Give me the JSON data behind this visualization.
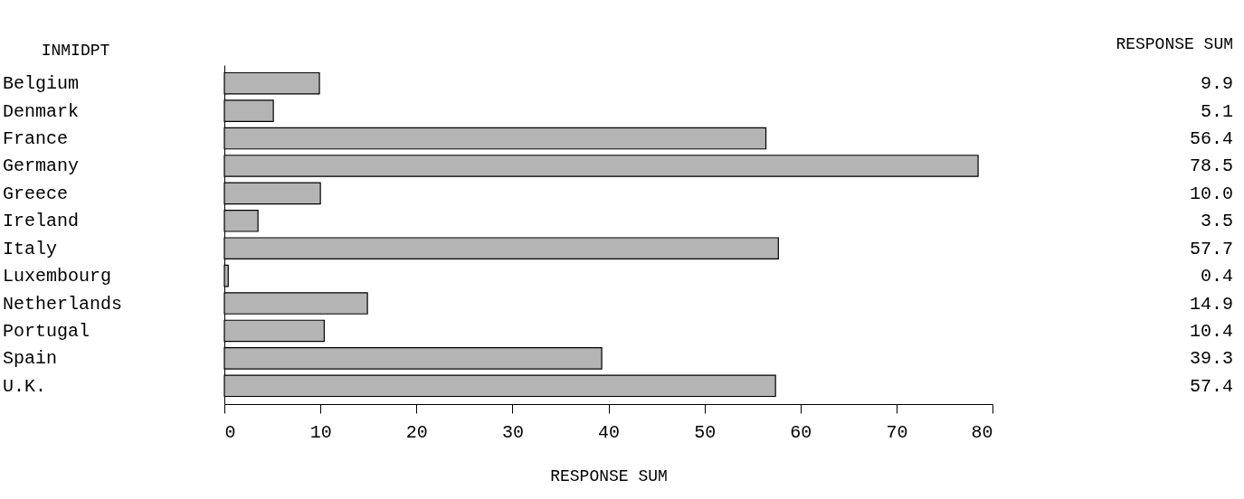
{
  "chart_data": {
    "type": "bar",
    "orientation": "horizontal",
    "xlabel": "RESPONSE SUM",
    "ylabel": "INMIDPT",
    "categories": [
      "Belgium",
      "Denmark",
      "France",
      "Germany",
      "Greece",
      "Ireland",
      "Italy",
      "Luxembourg",
      "Netherlands",
      "Portugal",
      "Spain",
      "U.K."
    ],
    "values": [
      9.9,
      5.1,
      56.4,
      78.5,
      10.0,
      3.5,
      57.7,
      0.4,
      14.9,
      10.4,
      39.3,
      57.4
    ],
    "value_labels": [
      "9.9",
      "5.1",
      "56.4",
      "78.5",
      "10.0",
      "3.5",
      "57.7",
      "0.4",
      "14.9",
      "10.4",
      "39.3",
      "57.4"
    ],
    "color": "#b4b4b4",
    "xlim": [
      0,
      80
    ],
    "xticks": [
      0,
      10,
      20,
      30,
      40,
      50,
      60,
      70,
      80
    ],
    "annotations": [
      "RESPONSE SUM"
    ],
    "grid": false
  }
}
